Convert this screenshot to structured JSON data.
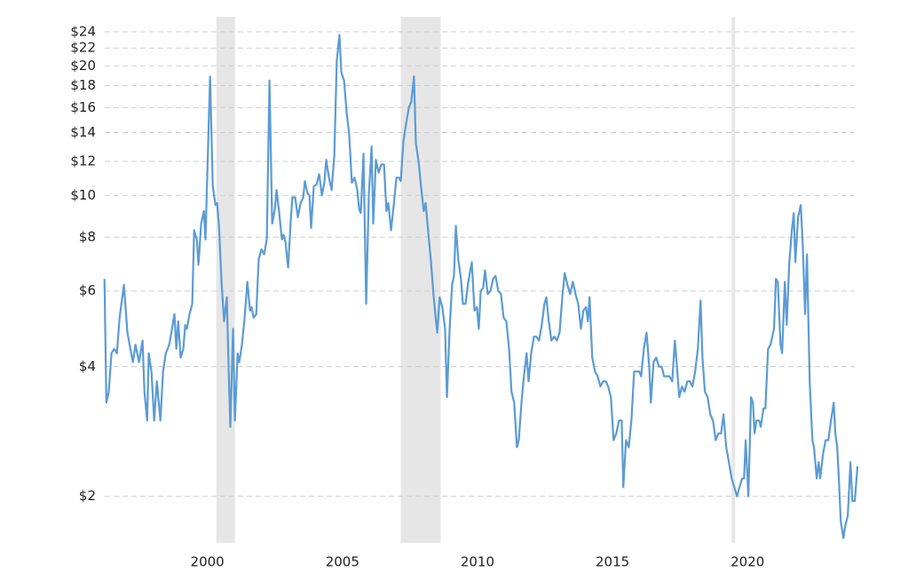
{
  "chart_data": {
    "type": "line",
    "color": "#5b9bd5",
    "log_scale": true,
    "grid": true,
    "recession_color": "#e6e6e6",
    "recessions": [
      [
        2000.33,
        2001.02
      ],
      [
        2007.16,
        2008.64
      ],
      [
        2019.41,
        2019.54
      ]
    ],
    "xlim": [
      1996.2,
      2024.1
    ],
    "xticks": [
      2000,
      2005,
      2010,
      2015,
      2020
    ],
    "ylim": [
      1.56,
      26
    ],
    "yticks": [
      {
        "value": 2,
        "label": "$2"
      },
      {
        "value": 4,
        "label": "$4"
      },
      {
        "value": 6,
        "label": "$6"
      },
      {
        "value": 8,
        "label": "$8"
      },
      {
        "value": 10,
        "label": "$10"
      },
      {
        "value": 12,
        "label": "$12"
      },
      {
        "value": 14,
        "label": "$14"
      },
      {
        "value": 16,
        "label": "$16"
      },
      {
        "value": 18,
        "label": "$18"
      },
      {
        "value": 20,
        "label": "$20"
      },
      {
        "value": 22,
        "label": "$22"
      },
      {
        "value": 24,
        "label": "$24"
      }
    ],
    "x": [
      1996.19,
      1996.26,
      1996.35,
      1996.45,
      1996.55,
      1996.65,
      1996.75,
      1996.91,
      1997.04,
      1997.18,
      1997.24,
      1997.34,
      1997.47,
      1997.6,
      1997.67,
      1997.77,
      1997.83,
      1997.93,
      1998.03,
      1998.13,
      1998.26,
      1998.36,
      1998.46,
      1998.59,
      1998.69,
      1998.78,
      1998.85,
      1998.92,
      1999.01,
      1999.11,
      1999.18,
      1999.24,
      1999.34,
      1999.44,
      1999.51,
      1999.61,
      1999.67,
      1999.77,
      1999.87,
      1999.93,
      2000.1,
      2000.2,
      2000.3,
      2000.36,
      2000.43,
      2000.53,
      2000.62,
      2000.72,
      2000.79,
      2000.85,
      2000.95,
      2001.02,
      2001.12,
      2001.18,
      2001.28,
      2001.38,
      2001.48,
      2001.58,
      2001.64,
      2001.71,
      2001.81,
      2001.9,
      2002.0,
      2002.1,
      2002.2,
      2002.3,
      2002.4,
      2002.5,
      2002.56,
      2002.66,
      2002.76,
      2002.82,
      2002.89,
      2002.99,
      2003.09,
      2003.15,
      2003.25,
      2003.35,
      2003.45,
      2003.55,
      2003.61,
      2003.71,
      2003.78,
      2003.84,
      2003.94,
      2004.04,
      2004.14,
      2004.24,
      2004.33,
      2004.4,
      2004.5,
      2004.6,
      2004.7,
      2004.79,
      2004.89,
      2004.96,
      2005.06,
      2005.16,
      2005.25,
      2005.35,
      2005.45,
      2005.55,
      2005.62,
      2005.68,
      2005.78,
      2005.88,
      2005.98,
      2006.08,
      2006.14,
      2006.24,
      2006.34,
      2006.44,
      2006.54,
      2006.63,
      2006.7,
      2006.8,
      2006.9,
      2007.0,
      2007.09,
      2007.16,
      2007.26,
      2007.36,
      2007.46,
      2007.55,
      2007.65,
      2007.72,
      2007.82,
      2007.91,
      2008.01,
      2008.08,
      2008.18,
      2008.28,
      2008.37,
      2008.44,
      2008.51,
      2008.6,
      2008.7,
      2008.8,
      2008.87,
      2008.97,
      2009.06,
      2009.13,
      2009.2,
      2009.29,
      2009.39,
      2009.46,
      2009.56,
      2009.66,
      2009.79,
      2009.89,
      2009.98,
      2010.05,
      2010.12,
      2010.21,
      2010.28,
      2010.38,
      2010.48,
      2010.58,
      2010.67,
      2010.77,
      2010.87,
      2010.97,
      2011.07,
      2011.17,
      2011.26,
      2011.36,
      2011.46,
      2011.53,
      2011.63,
      2011.72,
      2011.82,
      2011.89,
      2011.99,
      2012.09,
      2012.18,
      2012.28,
      2012.38,
      2012.48,
      2012.55,
      2012.64,
      2012.74,
      2012.84,
      2012.94,
      2013.04,
      2013.14,
      2013.23,
      2013.33,
      2013.43,
      2013.53,
      2013.63,
      2013.73,
      2013.83,
      2013.92,
      2014.02,
      2014.09,
      2014.15,
      2014.25,
      2014.35,
      2014.45,
      2014.55,
      2014.65,
      2014.75,
      2014.84,
      2014.94,
      2015.04,
      2015.14,
      2015.24,
      2015.34,
      2015.4,
      2015.5,
      2015.6,
      2015.7,
      2015.8,
      2015.89,
      2015.99,
      2016.06,
      2016.16,
      2016.26,
      2016.36,
      2016.42,
      2016.52,
      2016.62,
      2016.72,
      2016.82,
      2016.91,
      2017.01,
      2017.11,
      2017.21,
      2017.31,
      2017.4,
      2017.47,
      2017.57,
      2017.67,
      2017.77,
      2017.86,
      2017.96,
      2018.06,
      2018.16,
      2018.26,
      2018.33,
      2018.42,
      2018.52,
      2018.62,
      2018.72,
      2018.82,
      2018.92,
      2019.02,
      2019.11,
      2019.21,
      2019.31,
      2019.41,
      2019.51,
      2019.61,
      2019.7,
      2019.8,
      2019.87,
      2019.93,
      2020.03,
      2020.13,
      2020.2,
      2020.26,
      2020.33,
      2020.43,
      2020.49,
      2020.59,
      2020.66,
      2020.76,
      2020.85,
      2020.98,
      2021.05,
      2021.12,
      2021.22,
      2021.28,
      2021.38,
      2021.45,
      2021.54,
      2021.64,
      2021.71,
      2021.77,
      2021.87,
      2021.97,
      2022.04,
      2022.13,
      2022.2,
      2022.3,
      2022.4,
      2022.46,
      2022.56,
      2022.63,
      2022.69,
      2022.79,
      2022.89,
      2022.99,
      2023.09,
      2023.19,
      2023.25,
      2023.32,
      2023.38,
      2023.45,
      2023.55,
      2023.61,
      2023.71,
      2023.81,
      2023.88,
      2023.97,
      2024.07
    ],
    "values": [
      6.4,
      3.3,
      3.5,
      4.3,
      4.4,
      4.3,
      5.2,
      6.2,
      4.8,
      4.3,
      4.1,
      4.5,
      4.1,
      4.6,
      3.5,
      3.0,
      4.3,
      3.9,
      3.0,
      3.7,
      3.0,
      3.9,
      4.3,
      4.5,
      4.9,
      5.3,
      4.4,
      5.1,
      4.2,
      4.4,
      5.0,
      4.9,
      5.3,
      5.6,
      8.3,
      7.9,
      6.9,
      8.6,
      9.2,
      7.9,
      18.9,
      10.5,
      9.5,
      9.6,
      8.5,
      6.2,
      5.1,
      5.8,
      3.9,
      2.9,
      4.9,
      3.0,
      4.3,
      4.1,
      4.5,
      5.2,
      6.3,
      5.4,
      5.5,
      5.2,
      5.3,
      7.1,
      7.5,
      7.3,
      7.9,
      18.5,
      8.6,
      9.3,
      10.3,
      9.1,
      7.9,
      8.1,
      7.8,
      6.8,
      8.8,
      9.9,
      9.9,
      8.9,
      9.6,
      9.9,
      10.8,
      10.1,
      10.0,
      8.4,
      10.5,
      10.6,
      11.2,
      10.0,
      10.7,
      12.1,
      11.0,
      10.3,
      12.4,
      20.5,
      23.6,
      19.3,
      18.5,
      15.5,
      13.9,
      10.7,
      11.0,
      10.3,
      9.3,
      9.1,
      12.5,
      5.6,
      10.1,
      13.0,
      8.6,
      12.1,
      11.3,
      11.8,
      11.8,
      9.2,
      9.6,
      8.3,
      9.5,
      11.0,
      11.0,
      10.8,
      13.4,
      14.7,
      16.0,
      16.5,
      18.9,
      13.2,
      12.0,
      10.5,
      9.2,
      9.6,
      8.2,
      7.0,
      5.9,
      5.3,
      4.8,
      5.8,
      5.5,
      4.9,
      3.4,
      4.9,
      6.2,
      6.5,
      8.5,
      7.1,
      6.4,
      5.6,
      5.6,
      6.3,
      7.0,
      5.4,
      5.5,
      4.9,
      6.0,
      6.1,
      6.7,
      5.9,
      6.0,
      6.4,
      6.5,
      6.0,
      5.9,
      5.2,
      5.1,
      4.4,
      3.5,
      3.3,
      2.6,
      2.7,
      3.3,
      3.8,
      4.3,
      3.7,
      4.3,
      4.7,
      4.7,
      4.6,
      5.0,
      5.6,
      5.8,
      5.1,
      4.6,
      4.7,
      4.6,
      4.8,
      5.8,
      6.6,
      6.2,
      5.9,
      6.3,
      5.9,
      5.6,
      4.9,
      5.4,
      5.5,
      5.1,
      5.8,
      4.2,
      3.9,
      3.8,
      3.6,
      3.7,
      3.7,
      3.6,
      3.4,
      2.7,
      2.8,
      3.0,
      3.0,
      2.1,
      2.7,
      2.6,
      3.0,
      3.9,
      3.9,
      3.9,
      3.8,
      4.4,
      4.8,
      4.0,
      3.3,
      4.1,
      4.2,
      4.0,
      4.0,
      3.8,
      3.8,
      3.8,
      3.7,
      4.6,
      3.9,
      3.4,
      3.6,
      3.5,
      3.7,
      3.7,
      3.6,
      3.9,
      4.4,
      5.7,
      4.2,
      3.5,
      3.4,
      3.1,
      3.0,
      2.7,
      2.8,
      2.8,
      3.1,
      2.6,
      2.4,
      2.2,
      2.1,
      2.0,
      2.1,
      2.2,
      2.2,
      2.7,
      2.0,
      3.4,
      3.3,
      2.8,
      3.0,
      3.0,
      2.9,
      3.2,
      3.2,
      4.4,
      4.5,
      4.9,
      6.4,
      6.3,
      4.5,
      4.3,
      6.3,
      5.0,
      6.9,
      8.3,
      9.1,
      7.0,
      8.9,
      9.5,
      7.8,
      5.3,
      7.3,
      3.7,
      2.7,
      2.6,
      2.2,
      2.4,
      2.2,
      2.5,
      2.7,
      2.7,
      3.0,
      3.3,
      2.8,
      2.6,
      2.2,
      1.75,
      1.6,
      1.7,
      1.8,
      2.4,
      1.95,
      1.95,
      2.35
    ]
  }
}
